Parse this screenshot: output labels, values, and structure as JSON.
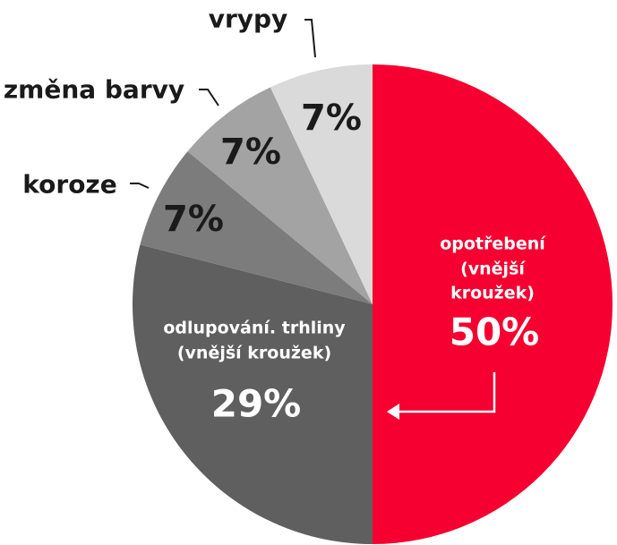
{
  "chart_data": {
    "type": "pie",
    "categories": [
      "opotřebení\n(vnější kroužek)",
      "odlupování. trhliny\n(vnější kroužek)",
      "koroze",
      "změna barvy",
      "vrypy"
    ],
    "values": [
      50,
      29,
      7,
      7,
      7
    ],
    "value_labels": [
      "50%",
      "29%",
      "7%",
      "7%",
      "7%"
    ],
    "colors": [
      "#f50030",
      "#5f5f5f",
      "#7c7c7c",
      "#a3a3a3",
      "#dadada"
    ]
  }
}
